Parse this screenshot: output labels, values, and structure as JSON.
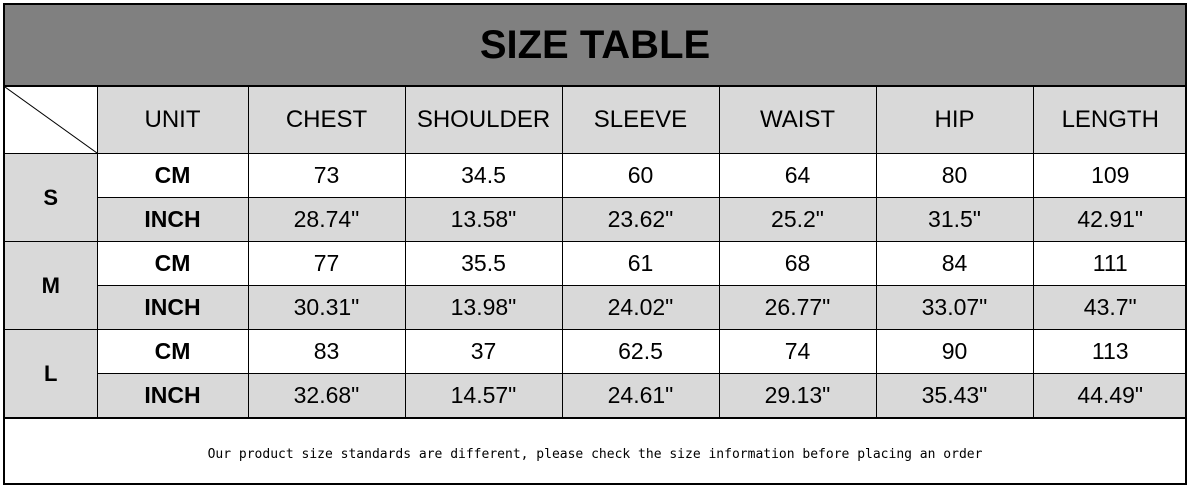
{
  "title": "SIZE TABLE",
  "headers": [
    "UNIT",
    "CHEST",
    "SHOULDER",
    "SLEEVE",
    "WAIST",
    "HIP",
    "LENGTH"
  ],
  "sizes": [
    {
      "size": "S",
      "rows": [
        [
          "CM",
          "73",
          "34.5",
          "60",
          "64",
          "80",
          "109"
        ],
        [
          "INCH",
          "28.74\"",
          "13.58\"",
          "23.62\"",
          "25.2\"",
          "31.5\"",
          "42.91\""
        ]
      ]
    },
    {
      "size": "M",
      "rows": [
        [
          "CM",
          "77",
          "35.5",
          "61",
          "68",
          "84",
          "111"
        ],
        [
          "INCH",
          "30.31\"",
          "13.98\"",
          "24.02\"",
          "26.77\"",
          "33.07\"",
          "43.7\""
        ]
      ]
    },
    {
      "size": "L",
      "rows": [
        [
          "CM",
          "83",
          "37",
          "62.5",
          "74",
          "90",
          "113"
        ],
        [
          "INCH",
          "32.68\"",
          "14.57\"",
          "24.61\"",
          "29.13\"",
          "35.43\"",
          "44.49\""
        ]
      ]
    }
  ],
  "footer": "Our product size standards are different, please check the size information before placing an order",
  "colors": {
    "title_bg": "#808080",
    "cell_gray": "#d9d9d9"
  }
}
